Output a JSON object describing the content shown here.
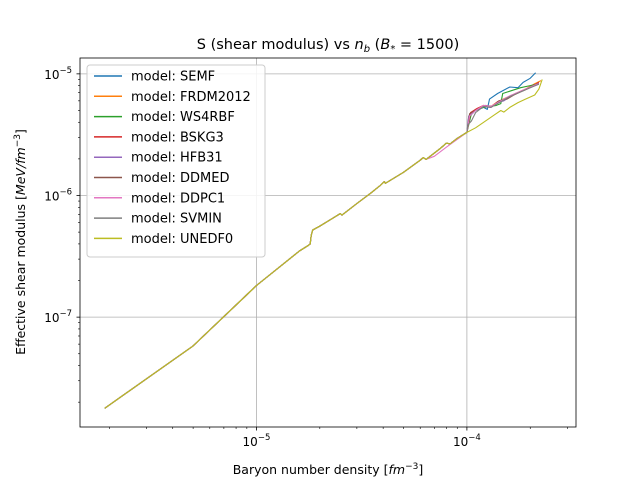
{
  "chart_data": {
    "type": "line",
    "title": "S (shear modulus) vs n_b (B_* = 1500)",
    "title_parts": {
      "prefix": "S (shear modulus) vs ",
      "var": "n",
      "var_sub": "b",
      "paren": " (",
      "bvar": "B",
      "bsub": "*",
      "eq": " = 1500)"
    },
    "xlabel": "Baryon number density [fm^-3]",
    "xlabel_parts": {
      "text": "Baryon number density [",
      "unit": "fm",
      "exp": "−3",
      "close": "]"
    },
    "ylabel": "Effective shear modulus [MeV/fm^-3]",
    "ylabel_parts": {
      "text": "Effective shear modulus [",
      "unit": "MeV/fm",
      "exp": "−3",
      "close": "]"
    },
    "x_scale": "log",
    "y_scale": "log",
    "xlim": [
      1.45e-06,
      0.00033
    ],
    "ylim": [
      1.25e-08,
      1.35e-05
    ],
    "grid": true,
    "legend_position": "top-left",
    "x_major_ticks": [
      {
        "value": 1e-05,
        "base": "10",
        "exp": "−5"
      },
      {
        "value": 0.0001,
        "base": "10",
        "exp": "−4"
      }
    ],
    "y_major_ticks": [
      {
        "value": 1e-07,
        "base": "10",
        "exp": "−7"
      },
      {
        "value": 1e-06,
        "base": "10",
        "exp": "−6"
      },
      {
        "value": 1e-05,
        "base": "10",
        "exp": "−5"
      }
    ],
    "shared_path": [
      [
        1.9e-06,
        1.78e-08
      ],
      [
        5e-06,
        5.8e-08
      ],
      [
        1e-05,
        1.82e-07
      ],
      [
        1.6e-05,
        3.5e-07
      ],
      [
        1.75e-05,
        3.85e-07
      ],
      [
        1.8e-05,
        4e-07
      ],
      [
        1.82e-05,
        4.7e-07
      ],
      [
        1.85e-05,
        5.2e-07
      ],
      [
        2e-05,
        5.6e-07
      ],
      [
        2.3e-05,
        6.5e-07
      ],
      [
        2.5e-05,
        7.1e-07
      ],
      [
        2.55e-05,
        6.9e-07
      ],
      [
        3e-05,
        8.6e-07
      ],
      [
        3.5e-05,
        1.05e-06
      ],
      [
        3.9e-05,
        1.22e-06
      ],
      [
        4.05e-05,
        1.3e-06
      ],
      [
        4.1e-05,
        1.26e-06
      ],
      [
        5e-05,
        1.55e-06
      ],
      [
        6e-05,
        1.95e-06
      ],
      [
        6.2e-05,
        2.05e-06
      ],
      [
        6.4e-05,
        1.98e-06
      ],
      [
        7.5e-05,
        2.45e-06
      ],
      [
        8e-05,
        2.7e-06
      ],
      [
        8.3e-05,
        2.65e-06
      ],
      [
        9e-05,
        2.95e-06
      ],
      [
        0.0001,
        3.3e-06
      ]
    ],
    "series": [
      {
        "name": "model: SEMF",
        "color": "#1f77b4",
        "values": [
          [
            0.0001,
            3.3e-06
          ],
          [
            0.000102,
            4.4e-06
          ],
          [
            0.00011,
            5e-06
          ],
          [
            0.00012,
            5.3e-06
          ],
          [
            0.000125,
            5.1e-06
          ],
          [
            0.000128,
            6.2e-06
          ],
          [
            0.00014,
            6.9e-06
          ],
          [
            0.00016,
            7.8e-06
          ],
          [
            0.000175,
            7.7e-06
          ],
          [
            0.000185,
            8.5e-06
          ],
          [
            0.0002,
            9.2e-06
          ],
          [
            0.000212,
            1.02e-05
          ]
        ]
      },
      {
        "name": "model: FRDM2012",
        "color": "#ff7f0e",
        "values": [
          [
            0.0001,
            3.3e-06
          ],
          [
            0.000103,
            4.6e-06
          ],
          [
            0.00011,
            5.1e-06
          ],
          [
            0.00012,
            5.4e-06
          ],
          [
            0.00013,
            5.4e-06
          ],
          [
            0.00014,
            5.9e-06
          ],
          [
            0.000155,
            6.4e-06
          ],
          [
            0.00017,
            6.8e-06
          ],
          [
            0.00019,
            7.5e-06
          ],
          [
            0.00021,
            8.3e-06
          ],
          [
            0.000225,
            8.8e-06
          ]
        ]
      },
      {
        "name": "model: WS4RBF",
        "color": "#2ca02c",
        "values": [
          [
            0.0001,
            3.3e-06
          ],
          [
            0.000105,
            4.7e-06
          ],
          [
            0.00011,
            5e-06
          ],
          [
            0.00012,
            5.3e-06
          ],
          [
            0.000138,
            5.5e-06
          ],
          [
            0.000145,
            5.7e-06
          ],
          [
            0.000148,
            6.9e-06
          ],
          [
            0.00016,
            7.2e-06
          ],
          [
            0.00018,
            7.7e-06
          ],
          [
            0.0002,
            8e-06
          ],
          [
            0.00022,
            8.3e-06
          ]
        ]
      },
      {
        "name": "model: BSKG3",
        "color": "#d62728",
        "values": [
          [
            0.0001,
            3.3e-06
          ],
          [
            0.000104,
            4.8e-06
          ],
          [
            0.000112,
            5.2e-06
          ],
          [
            0.00012,
            5.5e-06
          ],
          [
            0.00013,
            5.3e-06
          ],
          [
            0.00014,
            5.9e-06
          ],
          [
            0.000155,
            6.3e-06
          ],
          [
            0.00017,
            6.9e-06
          ],
          [
            0.00019,
            7.5e-06
          ],
          [
            0.00021,
            8.1e-06
          ],
          [
            0.00022,
            8.5e-06
          ]
        ]
      },
      {
        "name": "model: HFB31",
        "color": "#9467bd",
        "values": [
          [
            0.0001,
            3.3e-06
          ],
          [
            0.000102,
            4.5e-06
          ],
          [
            0.00011,
            5e-06
          ],
          [
            0.00012,
            5.4e-06
          ],
          [
            0.00013,
            5.3e-06
          ],
          [
            0.00014,
            5.8e-06
          ],
          [
            0.00015,
            6e-06
          ],
          [
            0.000165,
            6.7e-06
          ],
          [
            0.000185,
            7.3e-06
          ],
          [
            0.000205,
            7.9e-06
          ],
          [
            0.00022,
            8.4e-06
          ]
        ]
      },
      {
        "name": "model: DDMED",
        "color": "#8c564b",
        "values": [
          [
            0.0001,
            3.3e-06
          ],
          [
            0.000103,
            4.7e-06
          ],
          [
            0.000112,
            5.1e-06
          ],
          [
            0.000122,
            5.5e-06
          ],
          [
            0.000132,
            5.4e-06
          ],
          [
            0.000142,
            6e-06
          ],
          [
            0.000155,
            6.2e-06
          ],
          [
            0.00017,
            6.8e-06
          ],
          [
            0.00019,
            7.4e-06
          ],
          [
            0.00021,
            8e-06
          ],
          [
            0.00022,
            8.4e-06
          ]
        ]
      },
      {
        "name": "model: DDPC1",
        "color": "#e377c2",
        "values": [
          [
            7e-05,
            2.1e-06
          ],
          [
            8e-05,
            2.5e-06
          ],
          [
            9e-05,
            2.9e-06
          ],
          [
            0.0001,
            3.3e-06
          ],
          [
            0.000103,
            4.5e-06
          ],
          [
            0.00011,
            5e-06
          ],
          [
            0.00012,
            5.5e-06
          ],
          [
            0.00013,
            5.4e-06
          ],
          [
            0.000145,
            6e-06
          ],
          [
            0.00016,
            6.6e-06
          ],
          [
            0.00018,
            7.2e-06
          ],
          [
            0.0002,
            7.8e-06
          ],
          [
            0.00022,
            8.3e-06
          ]
        ]
      },
      {
        "name": "model: SVMIN",
        "color": "#7f7f7f",
        "values": [
          [
            0.0001,
            3.3e-06
          ],
          [
            0.000101,
            3.8e-06
          ],
          [
            0.000105,
            4.1e-06
          ],
          [
            0.00011,
            4.8e-06
          ],
          [
            0.00012,
            5.4e-06
          ],
          [
            0.00013,
            5.3e-06
          ],
          [
            0.000145,
            5.9e-06
          ],
          [
            0.00016,
            6.5e-06
          ],
          [
            0.00018,
            7.1e-06
          ],
          [
            0.0002,
            7.7e-06
          ],
          [
            0.00022,
            8.2e-06
          ]
        ]
      },
      {
        "name": "model: UNEDF0",
        "color": "#bcbd22",
        "values": [
          [
            0.0001,
            3.3e-06
          ],
          [
            0.00011,
            3.6e-06
          ],
          [
            0.00012,
            4e-06
          ],
          [
            0.000135,
            4.6e-06
          ],
          [
            0.000145,
            5e-06
          ],
          [
            0.00015,
            4.85e-06
          ],
          [
            0.00016,
            5.3e-06
          ],
          [
            0.000175,
            5.8e-06
          ],
          [
            0.00019,
            6.2e-06
          ],
          [
            0.00021,
            6.7e-06
          ],
          [
            0.00022,
            7.5e-06
          ],
          [
            0.000228,
            9e-06
          ]
        ]
      }
    ]
  }
}
